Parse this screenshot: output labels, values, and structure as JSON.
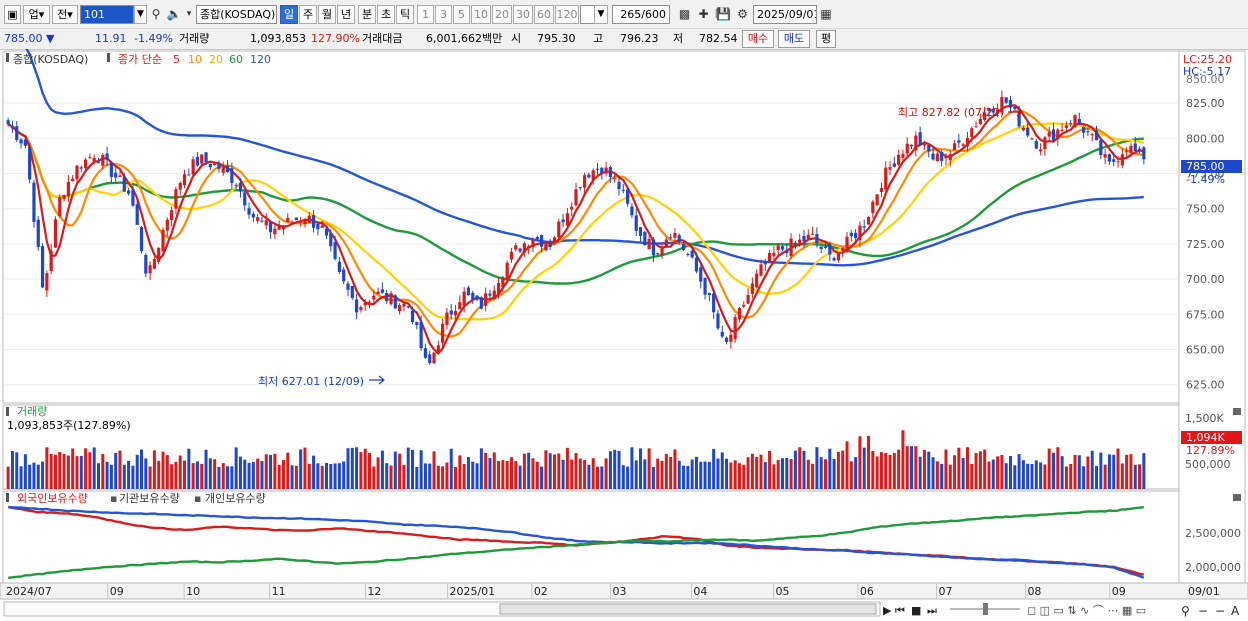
{
  "toolbar": {
    "market_label": "업",
    "prev_label": "전",
    "code": "101",
    "index_name": "종합(KOSDAQ)",
    "periods": [
      "일",
      "주",
      "월",
      "년",
      "분",
      "초",
      "틱"
    ],
    "active_period": "일",
    "intervals": [
      "1",
      "3",
      "5",
      "10",
      "20",
      "30",
      "60",
      "120"
    ],
    "count": "265",
    "count_total": "/600",
    "date": "2025/09/01"
  },
  "quote": {
    "price": "785.00",
    "change": "11.91",
    "change_pct": "-1.49%",
    "volume_label": "거래량",
    "volume": "1,093,853",
    "volume_ratio": "127.90%",
    "amount_label": "거래대금",
    "amount": "6,001,662백만",
    "open_label": "시",
    "open": "795.30",
    "high_label": "고",
    "high": "796.23",
    "low_label": "저",
    "low": "782.54",
    "buy_label": "매수",
    "sell_label": "매도",
    "eval_label": "평"
  },
  "chart": {
    "series_name": "종합(KOSDAQ)",
    "ma_title": "종가 단순",
    "ma_periods": [
      "5",
      "10",
      "20",
      "60",
      "120"
    ],
    "lc": "LC:25.20",
    "hc": "HC:-5.17",
    "top_partial_label": "850.00",
    "last_price_label": "785.00",
    "last_pct_label": "-1.49%",
    "high_annotation": "최고 827.82 (07/22)",
    "low_annotation": "최저 627.01 (12/09)",
    "volume_title": "거래량",
    "volume_value": "1,093,853주(127.89%)",
    "volume_last_label": "1,094K",
    "volume_last_pct": "127.89%",
    "holdings_titles": [
      "외국인보유수량",
      "기관보유수량",
      "개인보유수량"
    ],
    "x_labels": [
      "2024/07",
      "09",
      "10",
      "11",
      "12",
      "2025/01",
      "02",
      "03",
      "04",
      "05",
      "06",
      "07",
      "08",
      "09",
      "09/01"
    ],
    "colors": {
      "up": "#d81b1b",
      "down": "#1e48c9",
      "ma5": "#d81b1b",
      "ma10": "#ff8a00",
      "ma20": "#ffd200",
      "ma60": "#1e9a3a",
      "ma120": "#2456d8"
    }
  },
  "chart_data": [
    {
      "type": "candlestick",
      "title": "종합(KOSDAQ)",
      "y_ticks": [
        625,
        650,
        675,
        700,
        725,
        750,
        775,
        800,
        825
      ],
      "ylim": [
        612,
        862
      ],
      "x_range": [
        "2024/07",
        "2025/09/01"
      ],
      "close_series": {
        "name": "종합(KOSDAQ)",
        "points": [
          [
            "2024/07",
            810
          ],
          [
            "2024/07",
            795
          ],
          [
            "2024/08",
            690
          ],
          [
            "2024/08",
            760
          ],
          [
            "2024/08",
            780
          ],
          [
            "2024/08",
            790
          ],
          [
            "2024/09",
            775
          ],
          [
            "2024/09",
            760
          ],
          [
            "2024/09",
            700
          ],
          [
            "2024/09",
            740
          ],
          [
            "2024/10",
            775
          ],
          [
            "2024/10",
            785
          ],
          [
            "2024/10",
            780
          ],
          [
            "2024/10",
            770
          ],
          [
            "2024/11",
            745
          ],
          [
            "2024/11",
            735
          ],
          [
            "2024/11",
            740
          ],
          [
            "2024/11",
            745
          ],
          [
            "2024/11",
            735
          ],
          [
            "2024/11",
            700
          ],
          [
            "2024/11",
            680
          ],
          [
            "2024/12",
            690
          ],
          [
            "2024/12",
            685
          ],
          [
            "2024/12",
            680
          ],
          [
            "2024/12",
            635
          ],
          [
            "2024/12",
            670
          ],
          [
            "2024/12",
            690
          ],
          [
            "2025/01",
            680
          ],
          [
            "2025/01",
            700
          ],
          [
            "2025/01",
            720
          ],
          [
            "2025/01",
            730
          ],
          [
            "2025/02",
            725
          ],
          [
            "2025/02",
            750
          ],
          [
            "2025/02",
            775
          ],
          [
            "2025/02",
            780
          ],
          [
            "2025/03",
            765
          ],
          [
            "2025/03",
            735
          ],
          [
            "2025/03",
            720
          ],
          [
            "2025/03",
            735
          ],
          [
            "2025/04",
            715
          ],
          [
            "2025/04",
            690
          ],
          [
            "2025/04",
            650
          ],
          [
            "2025/04",
            680
          ],
          [
            "2025/04",
            705
          ],
          [
            "2025/05",
            720
          ],
          [
            "2025/05",
            725
          ],
          [
            "2025/05",
            730
          ],
          [
            "2025/05",
            715
          ],
          [
            "2025/05",
            725
          ],
          [
            "2025/06",
            740
          ],
          [
            "2025/06",
            770
          ],
          [
            "2025/06",
            790
          ],
          [
            "2025/06",
            800
          ],
          [
            "2025/06",
            785
          ],
          [
            "2025/07",
            790
          ],
          [
            "2025/07",
            805
          ],
          [
            "2025/07",
            820
          ],
          [
            "2025/07",
            827.82
          ],
          [
            "2025/07",
            810
          ],
          [
            "2025/08",
            795
          ],
          [
            "2025/08",
            805
          ],
          [
            "2025/08",
            815
          ],
          [
            "2025/08",
            800
          ],
          [
            "2025/08",
            780
          ],
          [
            "2025/08",
            795
          ],
          [
            "2025/09/01",
            785
          ]
        ]
      },
      "high": {
        "value": 827.82,
        "date": "07/22"
      },
      "low": {
        "value": 627.01,
        "date": "12/09"
      },
      "last": {
        "value": 785.0,
        "change_pct": -1.49
      },
      "moving_averages": [
        {
          "name": "5",
          "values": [
            805,
            800,
            760,
            745,
            770,
            785,
            780,
            765,
            720,
            735,
            765,
            780,
            782,
            772,
            752,
            740,
            742,
            744,
            738,
            712,
            688,
            690,
            686,
            680,
            660,
            668,
            685,
            683,
            700,
            716,
            728,
            726,
            745,
            770,
            778,
            768,
            742,
            725,
            732,
            718,
            695,
            665,
            675,
            700,
            716,
            722,
            728,
            718,
            722,
            736,
            765,
            786,
            797,
            788,
            790,
            803,
            816,
            822,
            812,
            800,
            802,
            810,
            802,
            786,
            792,
            790
          ]
        },
        {
          "name": "20",
          "values": [
            800,
            790,
            780,
            770,
            768,
            766,
            764,
            760,
            750,
            748,
            752,
            762,
            770,
            770,
            764,
            754,
            746,
            744,
            742,
            732,
            716,
            704,
            696,
            690,
            684,
            678,
            676,
            680,
            688,
            700,
            712,
            718,
            726,
            740,
            752,
            758,
            756,
            748,
            738,
            732,
            722,
            708,
            694,
            690,
            696,
            708,
            716,
            720,
            720,
            724,
            736,
            756,
            772,
            784,
            788,
            792,
            800,
            808,
            810,
            806,
            804,
            806,
            804,
            798,
            796,
            794
          ]
        }
      ]
    },
    {
      "type": "bar",
      "title": "거래량",
      "y_ticks": [
        "500,000",
        "1,500K"
      ],
      "last": {
        "value": 1093853,
        "ratio_pct": 127.89
      }
    },
    {
      "type": "line",
      "title": "외국인보유수량 / 기관보유수량 / 개인보유수량",
      "y_ticks": [
        "2,000,000",
        "2,500,000"
      ],
      "series": [
        {
          "name": "외국인보유수량",
          "values": [
            2950,
            2880,
            2860,
            2800,
            2700,
            2640,
            2610,
            2660,
            2640,
            2610,
            2600,
            2640,
            2600,
            2570,
            2520,
            2470,
            2460,
            2430,
            2420,
            2380,
            2420,
            2460,
            2520,
            2480,
            2380,
            2350,
            2330,
            2320,
            2310,
            2280,
            2250,
            2230,
            2200,
            2170,
            2150,
            2130,
            2100,
            2060,
            1940
          ]
        },
        {
          "name": "기관보유수량",
          "values": [
            2950,
            2930,
            2900,
            2880,
            2860,
            2850,
            2830,
            2820,
            2800,
            2790,
            2780,
            2760,
            2740,
            2700,
            2680,
            2660,
            2620,
            2570,
            2500,
            2450,
            2430,
            2430,
            2410,
            2420,
            2410,
            2380,
            2350,
            2320,
            2300,
            2270,
            2250,
            2220,
            2190,
            2170,
            2160,
            2120,
            2100,
            2050,
            1900
          ]
        },
        {
          "name": "개인보유수량",
          "values": [
            1900,
            1950,
            2000,
            2050,
            2080,
            2110,
            2140,
            2130,
            2150,
            2180,
            2150,
            2110,
            2130,
            2170,
            2210,
            2260,
            2290,
            2330,
            2360,
            2390,
            2420,
            2450,
            2440,
            2460,
            2470,
            2450,
            2490,
            2520,
            2570,
            2650,
            2700,
            2730,
            2760,
            2800,
            2820,
            2850,
            2880,
            2900,
            2950
          ]
        }
      ]
    }
  ]
}
